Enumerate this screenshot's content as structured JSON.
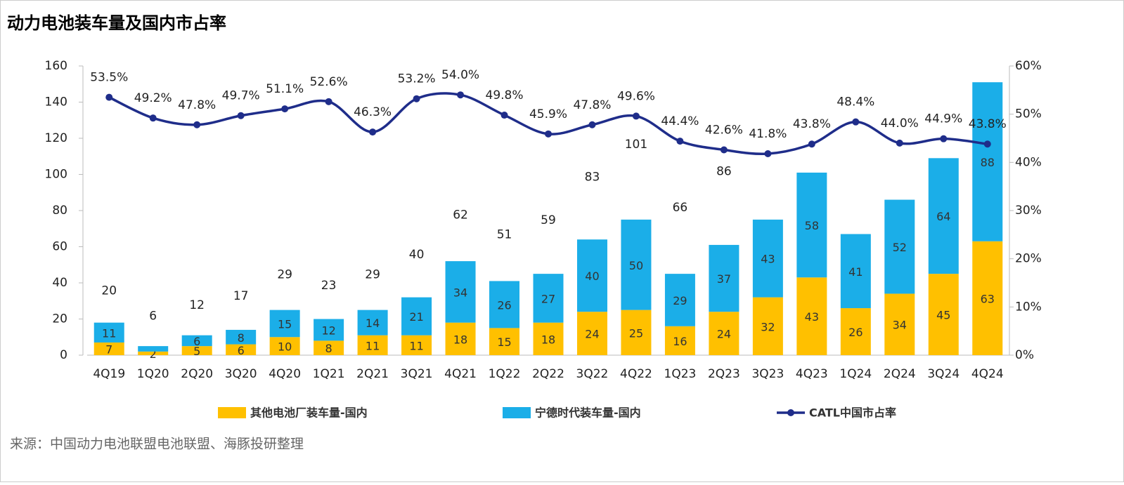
{
  "chart_data": {
    "type": "bar",
    "title": "动力电池装车量及国内市占率",
    "source": "来源：中国动力电池联盟电池联盟、海豚投研整理",
    "categories": [
      "4Q19",
      "1Q20",
      "2Q20",
      "3Q20",
      "4Q20",
      "1Q21",
      "2Q21",
      "3Q21",
      "4Q21",
      "1Q22",
      "2Q22",
      "3Q22",
      "4Q22",
      "1Q23",
      "2Q23",
      "3Q23",
      "4Q23",
      "1Q24",
      "2Q24",
      "3Q24",
      "4Q24"
    ],
    "series": [
      {
        "name": "其他电池厂装车量-国内",
        "color": "#FFC000",
        "values": [
          7,
          2,
          5,
          6,
          10,
          8,
          11,
          11,
          18,
          15,
          18,
          24,
          25,
          16,
          24,
          32,
          43,
          26,
          34,
          45,
          63
        ]
      },
      {
        "name": "宁德时代装车量-国内",
        "color": "#1BAEE8",
        "values": [
          11,
          3,
          6,
          8,
          15,
          12,
          14,
          21,
          34,
          26,
          27,
          40,
          50,
          29,
          37,
          43,
          58,
          41,
          52,
          64,
          88
        ],
        "value_labels": [
          "11",
          null,
          "6",
          "8",
          "15",
          "12",
          "14",
          "21",
          "34",
          "26",
          "27",
          "40",
          "50",
          "29",
          "37",
          "43",
          "58",
          "41",
          "52",
          "64",
          "88"
        ]
      },
      {
        "name": "CATL中国市占率",
        "color": "#1F2D8A",
        "type": "line",
        "axis": "y2",
        "values": [
          53.5,
          49.2,
          47.8,
          49.7,
          51.1,
          52.6,
          46.3,
          53.2,
          54.0,
          49.8,
          45.9,
          47.8,
          49.6,
          44.4,
          42.6,
          41.8,
          43.8,
          48.4,
          44.0,
          44.9,
          43.8
        ],
        "value_labels": [
          "53.5%",
          "49.2%",
          "47.8%",
          "49.7%",
          "51.1%",
          "52.6%",
          "46.3%",
          "53.2%",
          "54.0%",
          "49.8%",
          "45.9%",
          "47.8%",
          "49.6%",
          "44.4%",
          "42.6%",
          "41.8%",
          "43.8%",
          "48.4%",
          "44.0%",
          "44.9%",
          "43.8%"
        ]
      }
    ],
    "totals": [
      20,
      6,
      12,
      17,
      29,
      23,
      29,
      40,
      62,
      51,
      59,
      83,
      101,
      66,
      86,
      null,
      null,
      null,
      null,
      null,
      null
    ],
    "ylim": [
      0,
      160
    ],
    "yticks": [
      0,
      20,
      40,
      60,
      80,
      100,
      120,
      140,
      160
    ],
    "y2lim": [
      0,
      60
    ],
    "y2ticks": [
      {
        "value": 0,
        "label": "0%"
      },
      {
        "value": 10,
        "label": "10%"
      },
      {
        "value": 20,
        "label": "20%"
      },
      {
        "value": 30,
        "label": "30%"
      },
      {
        "value": 40,
        "label": "40%"
      },
      {
        "value": 50,
        "label": "50%"
      },
      {
        "value": 60,
        "label": "60%"
      }
    ],
    "grid": false
  }
}
